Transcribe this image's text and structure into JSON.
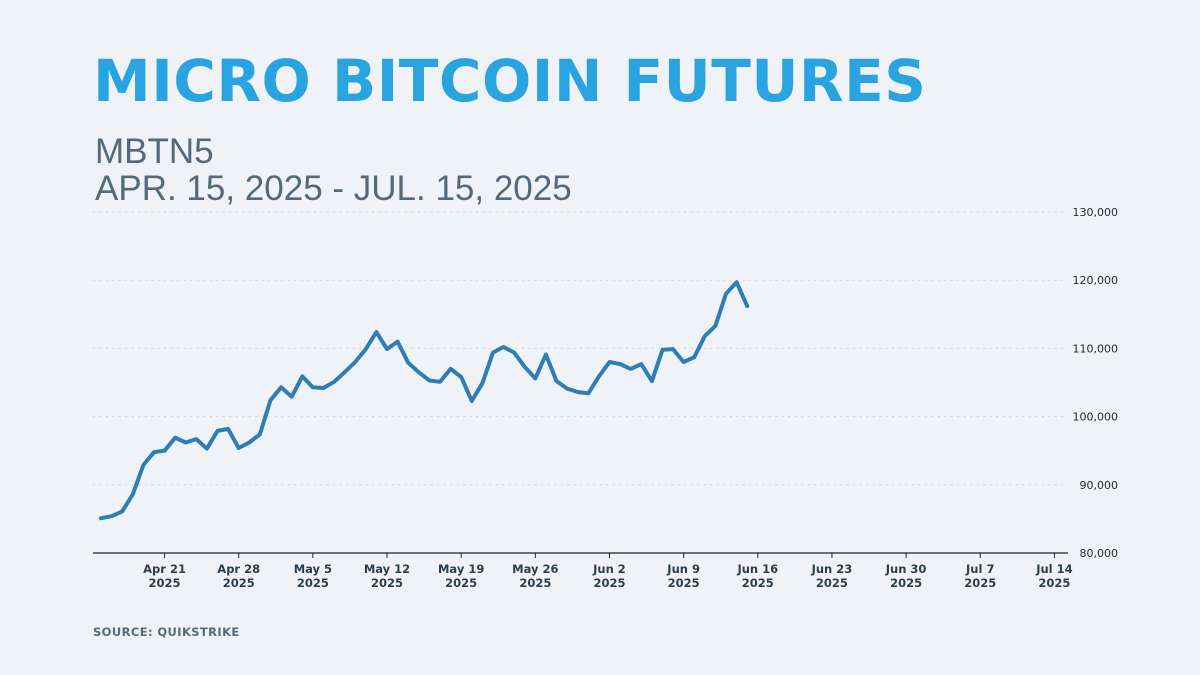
{
  "header": {
    "title": "MICRO BITCOIN FUTURES",
    "ticker": "MBTN5",
    "date_range": "APR. 15, 2025 - JUL. 15, 2025"
  },
  "footer": {
    "source": "SOURCE: QUIKSTRIKE"
  },
  "colors": {
    "title": "#2aa4e0",
    "line_main": "#2e7db5",
    "line_recent": "#2ddb6d",
    "grid": "#c6ced6"
  },
  "chart_data": {
    "type": "line",
    "title": "MICRO BITCOIN FUTURES",
    "ylim": [
      80000,
      130000
    ],
    "yticks": [
      80000,
      90000,
      100000,
      110000,
      120000,
      130000
    ],
    "ytick_labels": [
      "80,000",
      "90,000",
      "100,000",
      "110,000",
      "120,000",
      "130,000"
    ],
    "y_axis_position": "right",
    "grid": "horizontal-dotted",
    "xlim": [
      "2025-04-15",
      "2025-07-15"
    ],
    "xticks": [
      {
        "date": "2025-04-21",
        "label": "Apr 21",
        "sub": "2025"
      },
      {
        "date": "2025-04-28",
        "label": "Apr 28",
        "sub": "2025"
      },
      {
        "date": "2025-05-05",
        "label": "May 5",
        "sub": "2025"
      },
      {
        "date": "2025-05-12",
        "label": "May 12",
        "sub": "2025"
      },
      {
        "date": "2025-05-19",
        "label": "May 19",
        "sub": "2025"
      },
      {
        "date": "2025-05-26",
        "label": "May 26",
        "sub": "2025"
      },
      {
        "date": "2025-06-02",
        "label": "Jun 2",
        "sub": "2025"
      },
      {
        "date": "2025-06-09",
        "label": "Jun 9",
        "sub": "2025"
      },
      {
        "date": "2025-06-16",
        "label": "Jun 16",
        "sub": "2025"
      },
      {
        "date": "2025-06-23",
        "label": "Jun 23",
        "sub": "2025"
      },
      {
        "date": "2025-06-30",
        "label": "Jun 30",
        "sub": "2025"
      },
      {
        "date": "2025-07-07",
        "label": "Jul 7",
        "sub": "2025"
      },
      {
        "date": "2025-07-14",
        "label": "Jul 14",
        "sub": "2025"
      }
    ],
    "highlight_from": "2025-07-07",
    "series": [
      {
        "points": [
          [
            "2025-04-15",
            85100
          ],
          [
            "2025-04-16",
            85400
          ],
          [
            "2025-04-17",
            86100
          ],
          [
            "2025-04-18",
            88600
          ],
          [
            "2025-04-19",
            92900
          ],
          [
            "2025-04-20",
            94800
          ],
          [
            "2025-04-21",
            95000
          ],
          [
            "2025-04-22",
            96900
          ],
          [
            "2025-04-23",
            96200
          ],
          [
            "2025-04-24",
            96700
          ],
          [
            "2025-04-25",
            95300
          ],
          [
            "2025-04-26",
            97900
          ],
          [
            "2025-04-27",
            98200
          ],
          [
            "2025-04-28",
            95400
          ],
          [
            "2025-04-29",
            96200
          ],
          [
            "2025-04-30",
            97400
          ],
          [
            "2025-05-01",
            102400
          ],
          [
            "2025-05-02",
            104300
          ],
          [
            "2025-05-03",
            102900
          ],
          [
            "2025-05-04",
            105900
          ],
          [
            "2025-05-05",
            104300
          ],
          [
            "2025-05-06",
            104200
          ],
          [
            "2025-05-07",
            105100
          ],
          [
            "2025-05-08",
            106500
          ],
          [
            "2025-05-09",
            108000
          ],
          [
            "2025-05-10",
            109900
          ],
          [
            "2025-05-11",
            112400
          ],
          [
            "2025-05-12",
            109900
          ],
          [
            "2025-05-13",
            111000
          ],
          [
            "2025-05-14",
            107900
          ],
          [
            "2025-05-15",
            106500
          ],
          [
            "2025-05-16",
            105300
          ],
          [
            "2025-05-17",
            105100
          ],
          [
            "2025-05-18",
            107000
          ],
          [
            "2025-05-19",
            105800
          ],
          [
            "2025-05-20",
            102300
          ],
          [
            "2025-05-21",
            104900
          ],
          [
            "2025-05-22",
            109400
          ],
          [
            "2025-05-23",
            110200
          ],
          [
            "2025-05-24",
            109400
          ],
          [
            "2025-05-25",
            107300
          ],
          [
            "2025-05-26",
            105600
          ],
          [
            "2025-05-27",
            109100
          ],
          [
            "2025-05-28",
            105200
          ],
          [
            "2025-05-29",
            104100
          ],
          [
            "2025-05-30",
            103600
          ],
          [
            "2025-05-31",
            103400
          ],
          [
            "2025-06-01",
            105900
          ],
          [
            "2025-06-02",
            108000
          ],
          [
            "2025-06-03",
            107700
          ],
          [
            "2025-06-04",
            107000
          ],
          [
            "2025-06-05",
            107700
          ],
          [
            "2025-06-06",
            105200
          ],
          [
            "2025-06-07",
            109800
          ],
          [
            "2025-06-08",
            109900
          ],
          [
            "2025-06-09",
            108000
          ],
          [
            "2025-06-10",
            108700
          ],
          [
            "2025-06-11",
            111800
          ],
          [
            "2025-06-12",
            113300
          ],
          [
            "2025-06-13",
            118000
          ],
          [
            "2025-06-14",
            119700
          ],
          [
            "2025-06-15",
            116200
          ]
        ]
      }
    ]
  }
}
